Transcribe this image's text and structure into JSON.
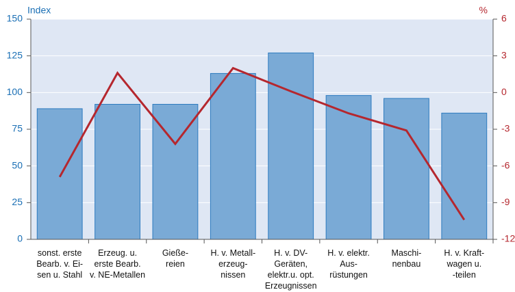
{
  "chart_data": {
    "type": "bar_line",
    "y_label": "Index",
    "y2_label": "%",
    "categories": [
      "sonst. erste\nBearb. v. Ei-\nsen u. Stahl",
      "Erzeug. u.\nerste Bearb.\nv. NE-Metallen",
      "Gieße-\nreien",
      "H. v.  Metall-\nerzeug-\nnissen",
      "H. v. DV-\nGeräten,\nelektr.u. opt.\nErzeugnissen",
      "H. v. elektr.\nAus-\nrüstungen",
      "Maschi-\nnenbau",
      "H. v. Kraft-\nwagen u.\n-teilen"
    ],
    "series": [
      {
        "type": "bar",
        "color": "#7aaad6",
        "values": [
          89,
          92,
          92,
          113,
          127,
          98,
          96,
          86
        ]
      },
      {
        "type": "line",
        "axis": "y2",
        "color": "#b5272e",
        "values": [
          -6.9,
          1.6,
          -4.2,
          2.0,
          0.1,
          -1.7,
          -3.1,
          -10.4
        ]
      }
    ],
    "ylim": [
      0,
      150
    ],
    "yticks": [
      0,
      25,
      50,
      75,
      100,
      125,
      150
    ],
    "y2lim": [
      -12,
      6
    ],
    "y2ticks": [
      -12,
      -9,
      -6,
      -3,
      0,
      3,
      6
    ],
    "grid": true
  }
}
